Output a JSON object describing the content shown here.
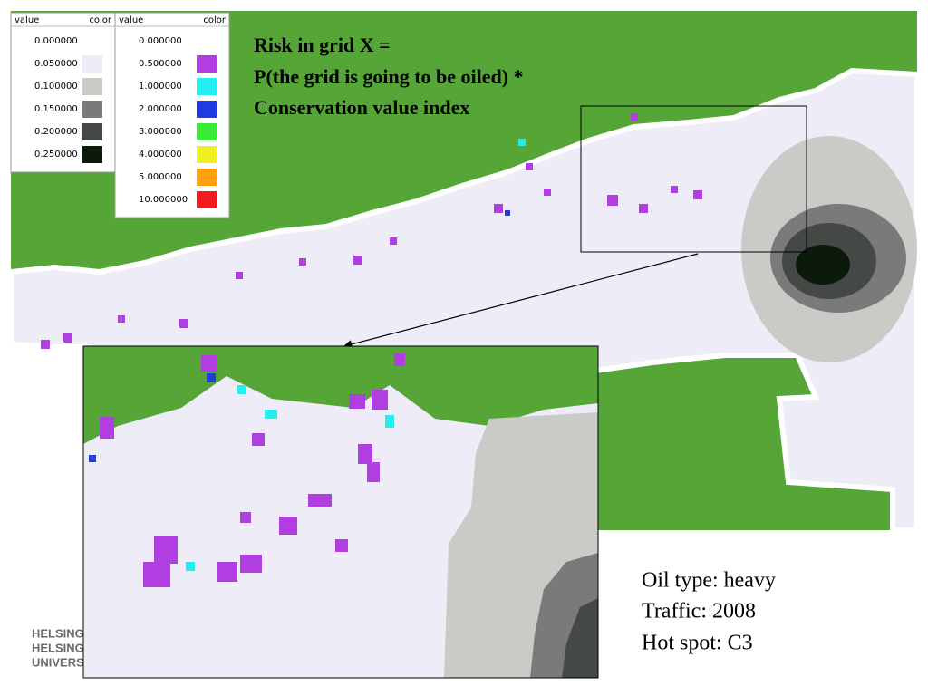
{
  "title_lines": [
    "Risk in grid X =",
    "P(the grid is going to be oiled) *",
    "Conservation value index"
  ],
  "legends": [
    {
      "headers": [
        "value",
        "color"
      ],
      "rows": [
        {
          "value": "0.000000",
          "color": null
        },
        {
          "value": "0.050000",
          "color": "#eeecf6"
        },
        {
          "value": "0.100000",
          "color": "#c8cbc6"
        },
        {
          "value": "0.150000",
          "color": "#7a7a7a"
        },
        {
          "value": "0.200000",
          "color": "#444946"
        },
        {
          "value": "0.250000",
          "color": "#0b1a0b"
        }
      ]
    },
    {
      "headers": [
        "value",
        "color"
      ],
      "rows": [
        {
          "value": "0.000000",
          "color": null
        },
        {
          "value": "0.500000",
          "color": "#b03ee0"
        },
        {
          "value": "1.000000",
          "color": "#22f0f0"
        },
        {
          "value": "2.000000",
          "color": "#1e3ce0"
        },
        {
          "value": "3.000000",
          "color": "#3ce838"
        },
        {
          "value": "4.000000",
          "color": "#f0f020"
        },
        {
          "value": "5.000000",
          "color": "#ffa010"
        },
        {
          "value": "10.000000",
          "color": "#f01c20"
        }
      ]
    }
  ],
  "info_lines": [
    "Oil type: heavy",
    "Traffic: 2008",
    "Hot spot: C3"
  ],
  "logo_lines": [
    "HELSINGI",
    "HELSINGI",
    "UNIVERSI"
  ]
}
